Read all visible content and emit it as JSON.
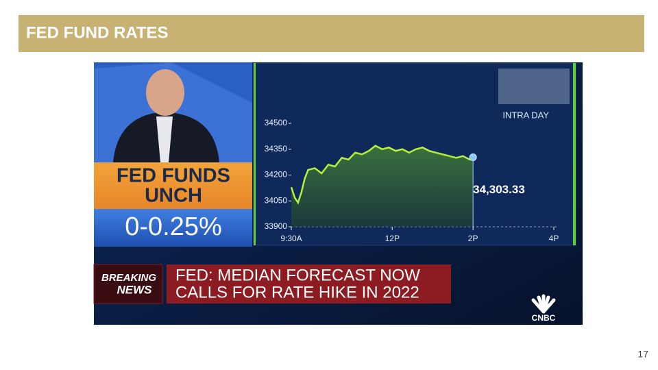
{
  "header": {
    "title": "FED FUND RATES"
  },
  "page_number": 17,
  "screen": {
    "badge": {
      "lines": [
        "FED FUNDS",
        "UNCH"
      ],
      "rate": "0-0.25%"
    },
    "breaking": {
      "lines": [
        "BREAKING",
        "NEWS"
      ]
    },
    "headline": {
      "lines": [
        "FED: MEDIAN FORECAST NOW",
        "CALLS FOR RATE HIKE IN 2022"
      ]
    },
    "network": "CNBC",
    "chart": {
      "type": "line",
      "label": "INTRA DAY",
      "color": "#b6f03a",
      "x": [
        570,
        575,
        580,
        585,
        590,
        595,
        605,
        615,
        625,
        635,
        645,
        655,
        665,
        675,
        685,
        695,
        705,
        715,
        725,
        735,
        745,
        755,
        765,
        775,
        785,
        795,
        805,
        815,
        825,
        835,
        840
      ],
      "values": [
        34130,
        34070,
        34040,
        34100,
        34180,
        34230,
        34240,
        34210,
        34260,
        34250,
        34300,
        34290,
        34330,
        34320,
        34340,
        34370,
        34350,
        34360,
        34340,
        34350,
        34330,
        34350,
        34360,
        34340,
        34330,
        34320,
        34310,
        34300,
        34310,
        34290,
        34303.33
      ],
      "value_labels": [
        null,
        null,
        null,
        null,
        null,
        null,
        null,
        null,
        null,
        null,
        null,
        null,
        null,
        null,
        null,
        null,
        null,
        null,
        null,
        null,
        null,
        null,
        null,
        null,
        null,
        null,
        null,
        null,
        null,
        null,
        "34,303.33"
      ],
      "xlim": [
        570,
        960
      ],
      "xticks": [
        {
          "value": 570,
          "label": "9:30A"
        },
        {
          "value": 720,
          "label": "12P"
        },
        {
          "value": 840,
          "label": "2P"
        },
        {
          "value": 960,
          "label": "4P"
        }
      ],
      "ylim": [
        33900,
        34500
      ],
      "yticks": [
        33900,
        34050,
        34200,
        34350,
        34500
      ]
    }
  }
}
